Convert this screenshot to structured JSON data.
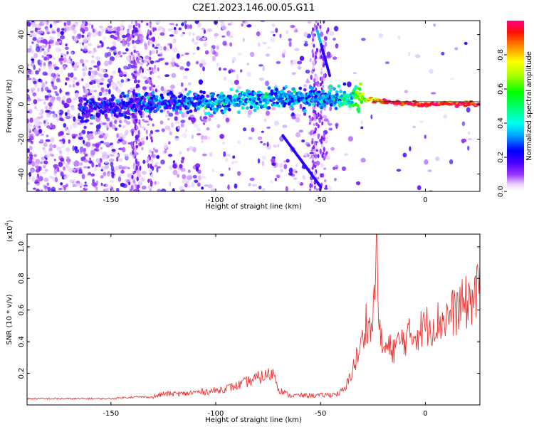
{
  "title": "C2E1.2023.146.00.05.G11",
  "chart_data": [
    {
      "type": "heatmap",
      "title": "C2E1.2023.146.00.05.G11",
      "xlabel": "Height of straight line (km)",
      "ylabel": "Frequency (Hz)",
      "xlim": [
        -190,
        26
      ],
      "ylim": [
        -50,
        48
      ],
      "xticks": [
        -150,
        -100,
        -50,
        0
      ],
      "yticks": [
        -40,
        -20,
        0,
        20,
        40
      ],
      "xtick_labels": [
        "-150",
        "-100",
        "-50",
        "0"
      ],
      "ytick_labels": [
        "-40",
        "-20",
        "0",
        "20",
        "40"
      ],
      "colorbar": {
        "label": "Normalized spectral amplitude",
        "range": [
          0,
          1
        ],
        "ticks": [
          0.0,
          0.2,
          0.4,
          0.6,
          0.8
        ],
        "tick_labels": [
          "0.0",
          "0.2",
          "0.4",
          "0.6",
          "0.8"
        ]
      },
      "ridge": {
        "description_free": true,
        "x": [
          -165,
          -150,
          -135,
          -120,
          -105,
          -90,
          -75,
          -60,
          -45,
          -35,
          -25,
          -15,
          0,
          15,
          26
        ],
        "y": [
          -2,
          -1,
          0,
          0,
          1,
          2,
          3,
          4,
          4,
          4,
          2,
          1,
          0,
          0,
          0
        ],
        "amplitude": [
          0.18,
          0.2,
          0.22,
          0.25,
          0.3,
          0.35,
          0.35,
          0.3,
          0.35,
          0.45,
          0.85,
          0.95,
          0.95,
          0.95,
          0.95
        ]
      },
      "diagonal_streaks": [
        {
          "x": [
            -51.5,
            -45.5
          ],
          "y": [
            42,
            16
          ]
        },
        {
          "x": [
            -68,
            -49.5
          ],
          "y": [
            -18,
            -48
          ]
        }
      ]
    },
    {
      "type": "line",
      "xlabel": "Height of straight line (km)",
      "ylabel": "SNR (10 * v/v)",
      "scale_label": "(x10",
      "scale_exp": "4",
      "xlim": [
        -190,
        26
      ],
      "ylim": [
        0,
        1.08
      ],
      "xticks": [
        -150,
        -100,
        -50,
        0
      ],
      "yticks": [
        0.2,
        0.4,
        0.6,
        0.8,
        1.0
      ],
      "xtick_labels": [
        "-150",
        "-100",
        "-50",
        "0"
      ],
      "ytick_labels": [
        "0.2",
        "0.4",
        "0.6",
        "0.8",
        "1.0"
      ],
      "series": [
        {
          "color": "#ee3333",
          "x": [
            -190,
            -170,
            -150,
            -140,
            -130,
            -125,
            -115,
            -110,
            -100,
            -90,
            -80,
            -75,
            -72,
            -70,
            -65,
            -60,
            -50,
            -42,
            -38,
            -35,
            -32,
            -30,
            -28,
            -26,
            -24,
            -23,
            -22,
            -20,
            -15,
            -10,
            -5,
            0,
            5,
            10,
            15,
            20,
            26
          ],
          "y": [
            0.04,
            0.04,
            0.04,
            0.05,
            0.05,
            0.07,
            0.07,
            0.08,
            0.09,
            0.12,
            0.17,
            0.19,
            0.2,
            0.1,
            0.06,
            0.06,
            0.06,
            0.07,
            0.1,
            0.22,
            0.32,
            0.4,
            0.55,
            0.45,
            0.7,
            1.05,
            0.45,
            0.35,
            0.36,
            0.42,
            0.45,
            0.5,
            0.52,
            0.55,
            0.6,
            0.65,
            0.72
          ]
        }
      ]
    }
  ]
}
